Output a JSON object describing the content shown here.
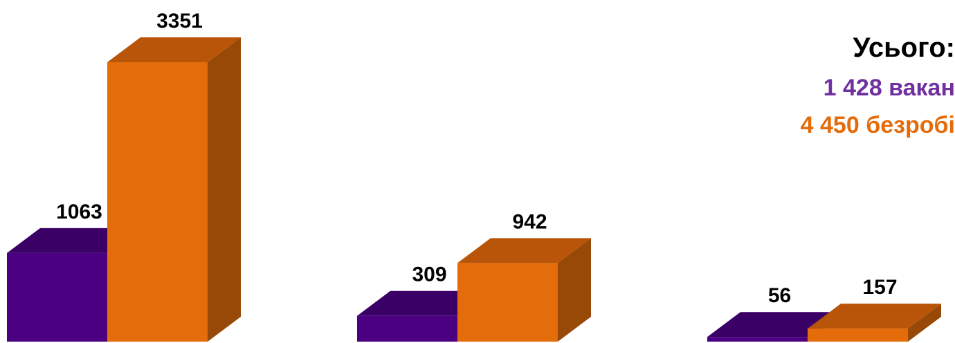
{
  "chart_data": {
    "type": "bar",
    "style": "3d",
    "categories": [
      "",
      "",
      ""
    ],
    "series": [
      {
        "values": [
          1063,
          309,
          56
        ],
        "color": "#4B0082",
        "top_color": "#3A0066",
        "side_color": "#2E0050"
      },
      {
        "values": [
          3351,
          942,
          157
        ],
        "color": "#E46C0A",
        "top_color": "#B85508",
        "side_color": "#984807"
      }
    ],
    "data_labels": true,
    "ylim": [
      0,
      3351
    ],
    "legend": "none",
    "grid": false
  },
  "summary": {
    "title": "Усього:",
    "line1": "1 428 вакан",
    "line2": "4 450 безробі",
    "line1_color": "#7030A0",
    "line2_color": "#E46C0A"
  }
}
